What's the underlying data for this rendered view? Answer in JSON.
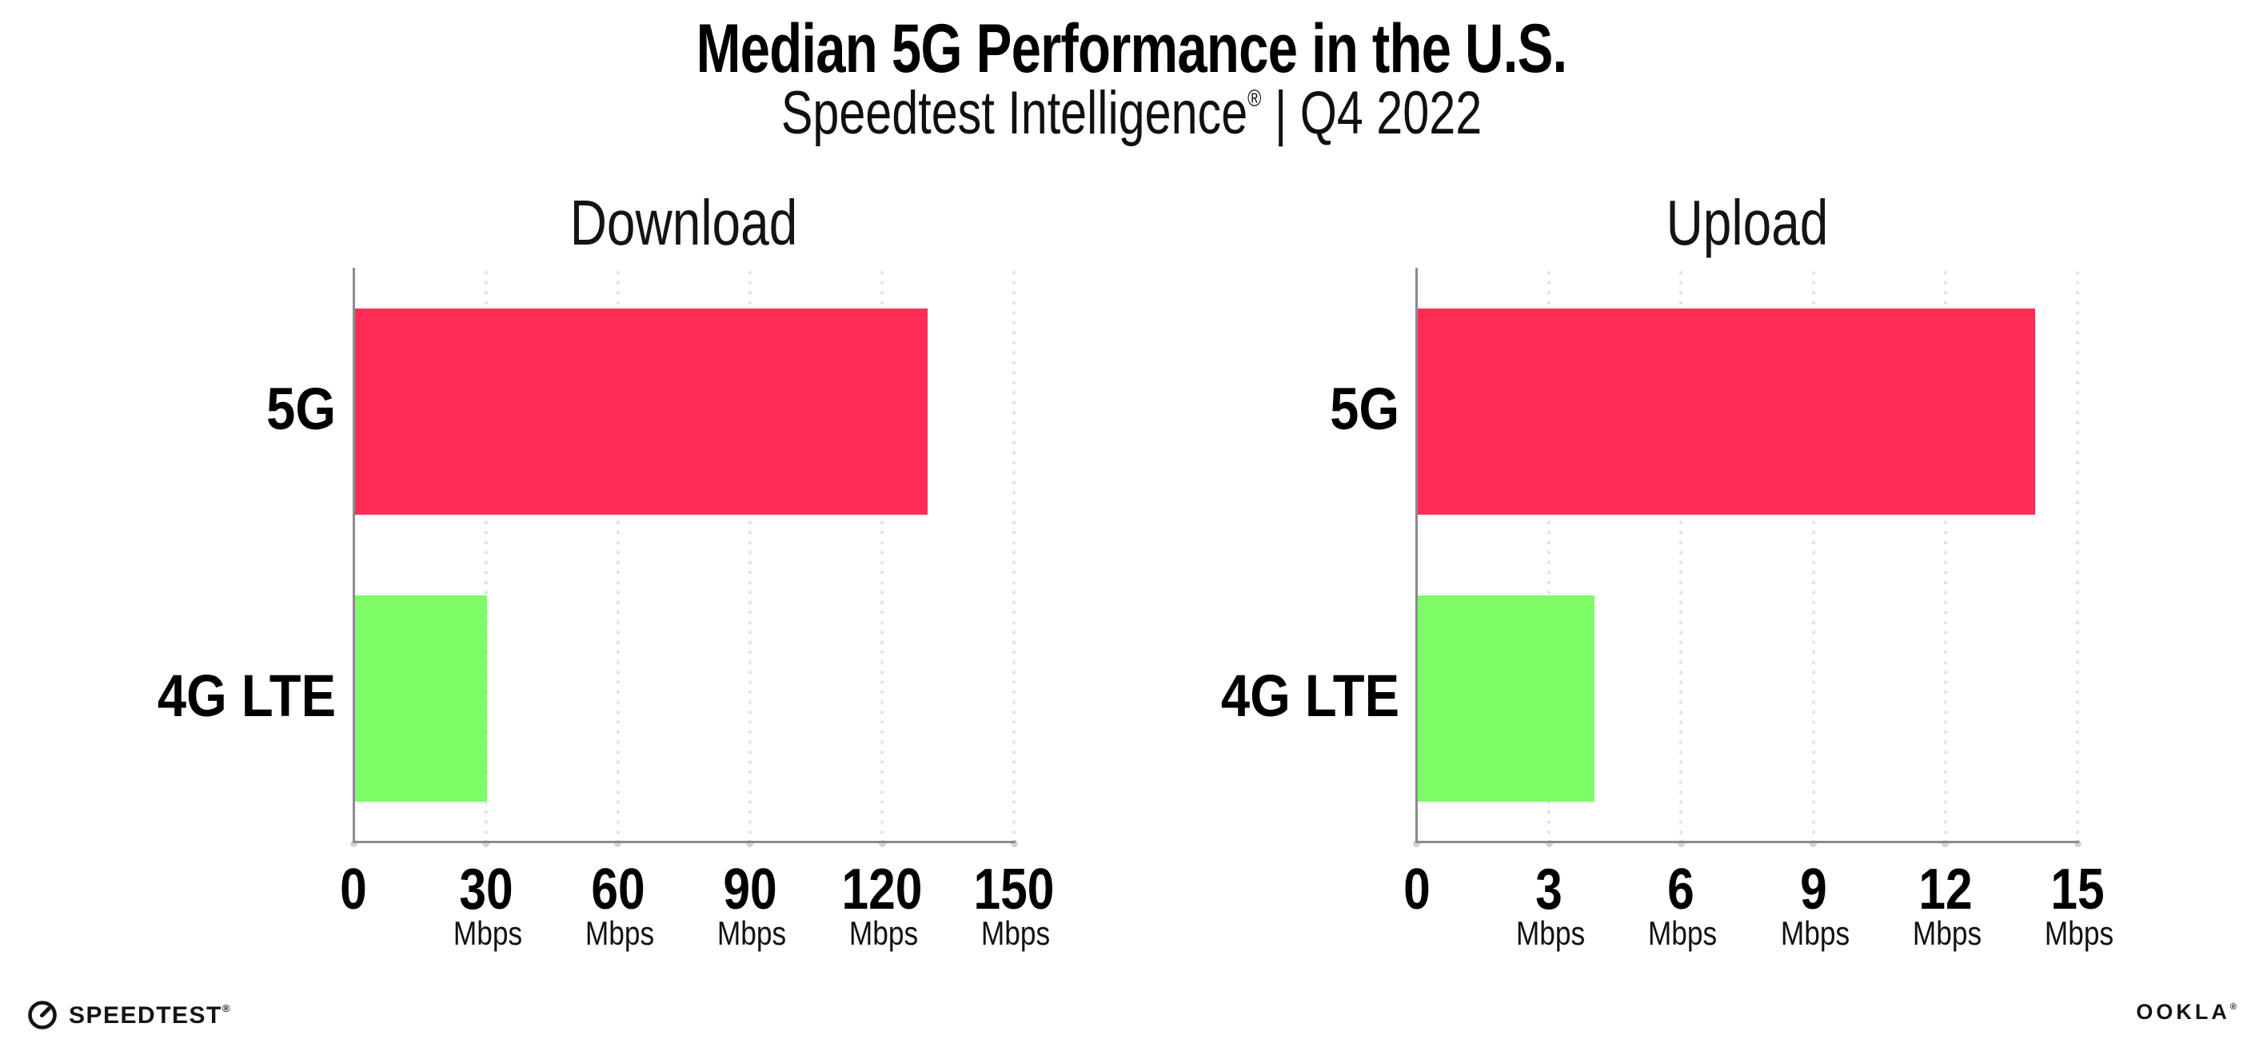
{
  "page": {
    "background": "#ffffff"
  },
  "header": {
    "title": "Median 5G Performance in the U.S.",
    "subtitle_brand": "Speedtest Intelligence",
    "subtitle_reg": "®",
    "subtitle_rest": " | Q4 2022"
  },
  "chart_data": [
    {
      "type": "bar",
      "orientation": "horizontal",
      "title": "Download",
      "categories": [
        "5G",
        "4G LTE"
      ],
      "values": [
        130,
        30
      ],
      "unit": "Mbps",
      "xlabel": "",
      "ylabel": "",
      "xlim": [
        0,
        150
      ],
      "xticks": [
        0,
        30,
        60,
        90,
        120,
        150
      ],
      "grid": "dotted-vertical",
      "legend": "none",
      "bar_colors": [
        "#ff2d55",
        "#7dfc66"
      ]
    },
    {
      "type": "bar",
      "orientation": "horizontal",
      "title": "Upload",
      "categories": [
        "5G",
        "4G LTE"
      ],
      "values": [
        14,
        4
      ],
      "unit": "Mbps",
      "xlabel": "",
      "ylabel": "",
      "xlim": [
        0,
        15
      ],
      "xticks": [
        0,
        3,
        6,
        9,
        12,
        15
      ],
      "grid": "dotted-vertical",
      "legend": "none",
      "bar_colors": [
        "#ff2d55",
        "#7dfc66"
      ]
    }
  ],
  "footer": {
    "left_logo_text": "SPEEDTEST",
    "left_logo_mark": "®",
    "right_logo_text": "OOKLA",
    "right_logo_mark": "®"
  },
  "colors": {
    "bar_5g": "#ff2d55",
    "bar_4g_lte": "#7dfc66",
    "axis_line": "#8c8c8c",
    "grid_dot": "#e1e1eb",
    "tick_dot": "#d3d3e0",
    "text": "#000000"
  }
}
